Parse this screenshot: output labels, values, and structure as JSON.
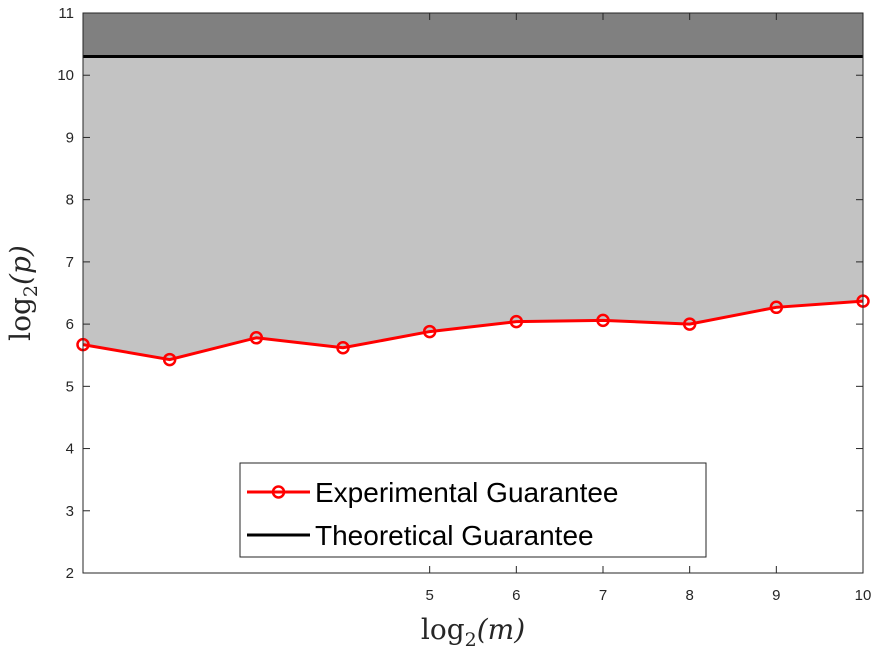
{
  "chart_data": {
    "type": "line",
    "x_tick_labels": [
      "5",
      "6",
      "7",
      "8",
      "9",
      "10"
    ],
    "y_tick_labels": [
      "2",
      "3",
      "4",
      "5",
      "6",
      "7",
      "8",
      "9",
      "10",
      "11"
    ],
    "xlabel": {
      "base": "log",
      "sub": "2",
      "arg": "(m)"
    },
    "ylabel": {
      "base": "log",
      "sub": "2",
      "arg": "(p)"
    },
    "xlim": [
      1,
      10
    ],
    "ylim": [
      2,
      11
    ],
    "grid": false,
    "legend_position": "bottom-center",
    "series": [
      {
        "name": "Experimental Guarantee",
        "color": "#ff0000",
        "marker": "circle",
        "x": [
          1,
          2,
          3,
          4,
          5,
          6,
          7,
          8,
          9,
          10
        ],
        "y": [
          5.67,
          5.43,
          5.78,
          5.62,
          5.88,
          6.04,
          6.06,
          6.0,
          6.27,
          6.37
        ]
      },
      {
        "name": "Theoretical Guarantee",
        "color": "#000000",
        "marker": "none",
        "x": [
          1,
          10
        ],
        "y": [
          10.3,
          10.3
        ]
      }
    ],
    "shaded_regions": [
      {
        "color": "#c3c3c3",
        "between": [
          "Experimental Guarantee",
          "Theoretical Guarantee"
        ]
      },
      {
        "color": "#808080",
        "between": [
          "Theoretical Guarantee",
          "top"
        ]
      }
    ]
  }
}
